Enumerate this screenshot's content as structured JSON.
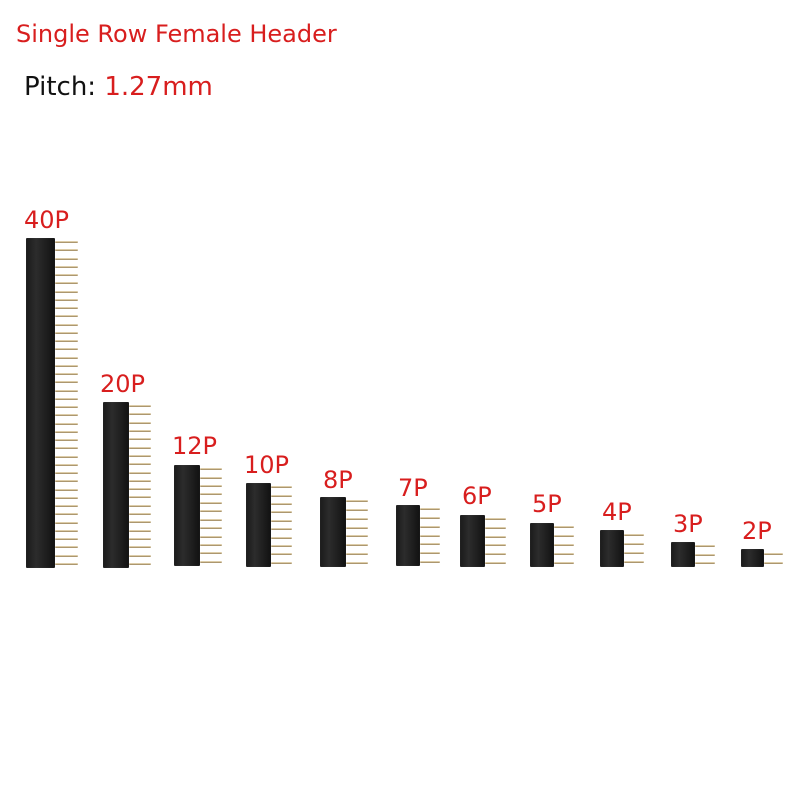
{
  "title": "Single Row Female Header",
  "pitch": {
    "label": "Pitch: ",
    "value": "1.27mm"
  },
  "headers": [
    {
      "label": "40P",
      "pins": 40
    },
    {
      "label": "20P",
      "pins": 20
    },
    {
      "label": "12P",
      "pins": 12
    },
    {
      "label": "10P",
      "pins": 10
    },
    {
      "label": "8P",
      "pins": 8
    },
    {
      "label": "7P",
      "pins": 7
    },
    {
      "label": "6P",
      "pins": 6
    },
    {
      "label": "5P",
      "pins": 5
    },
    {
      "label": "4P",
      "pins": 4
    },
    {
      "label": "3P",
      "pins": 3
    },
    {
      "label": "2P",
      "pins": 2
    }
  ],
  "colors": {
    "accent": "#d81e1e",
    "body": "#1e1e1e",
    "pin": "#c9b48a"
  }
}
